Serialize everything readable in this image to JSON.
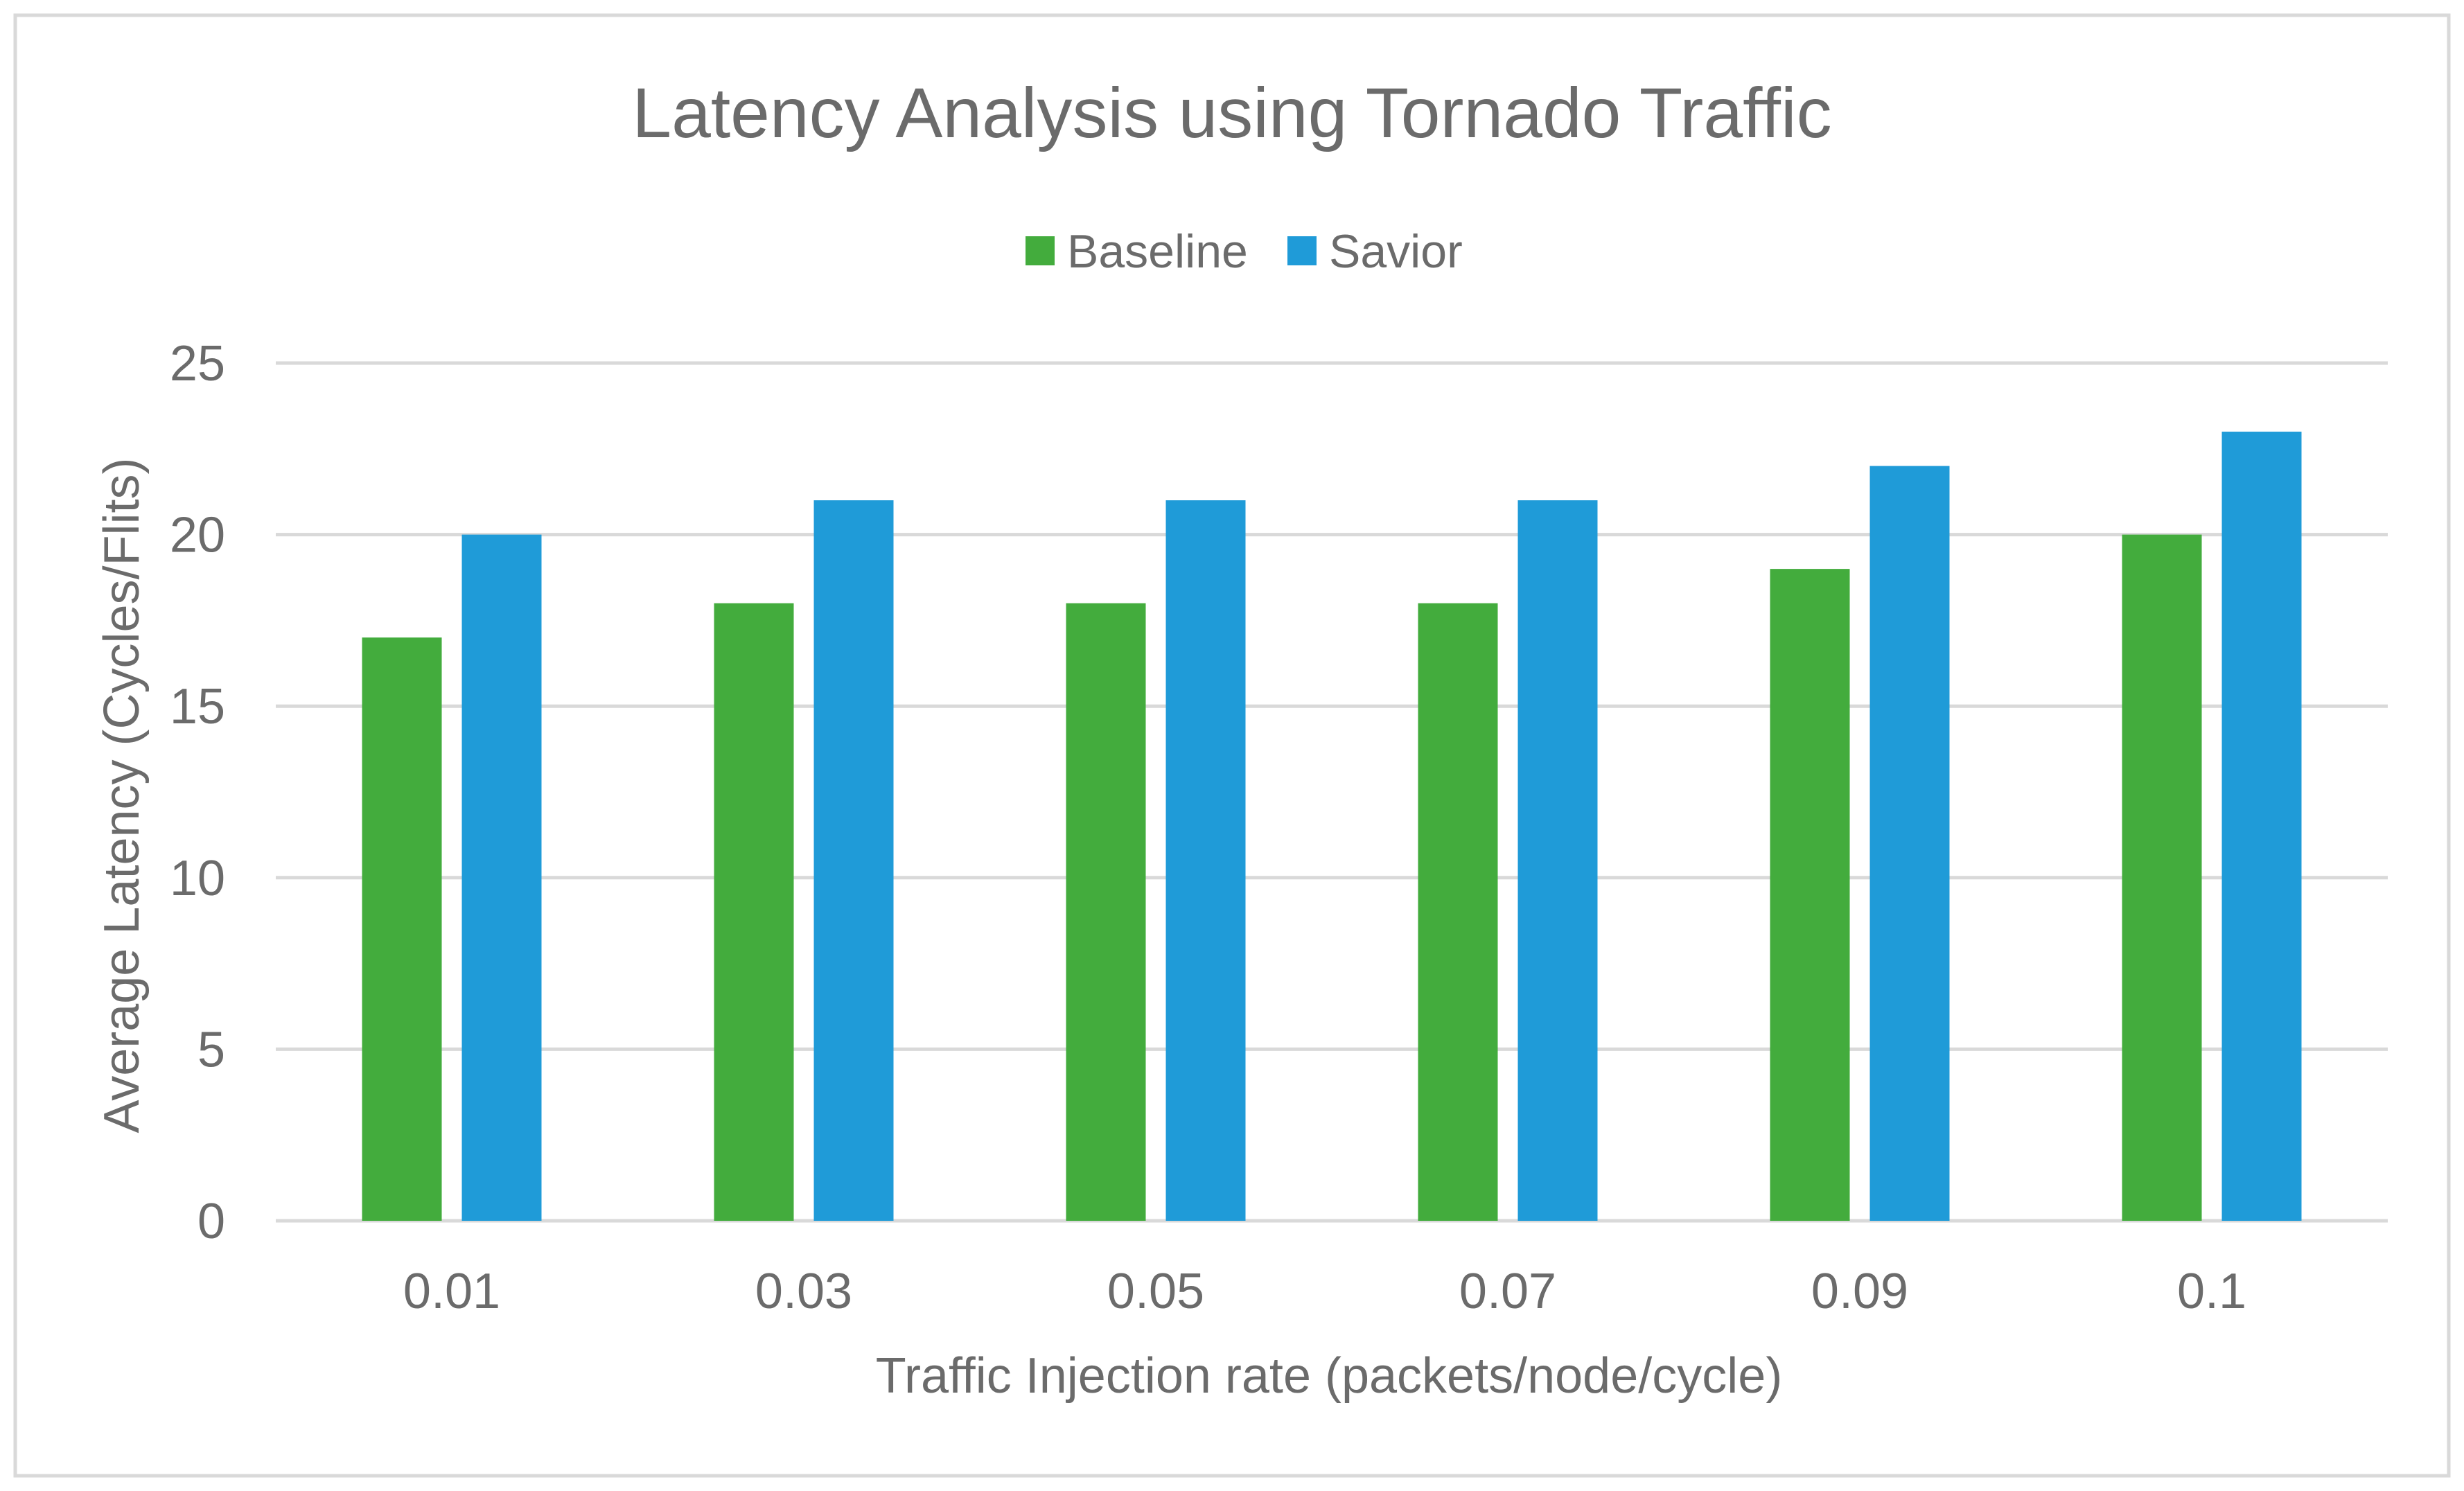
{
  "chart_data": {
    "type": "bar",
    "title": "Latency Analysis using Tornado Traffic",
    "xlabel": "Traffic Injection rate (packets/node/cycle)",
    "ylabel": "Average Latency (Cycles/Flits)",
    "categories": [
      "0.01",
      "0.03",
      "0.05",
      "0.07",
      "0.09",
      "0.1"
    ],
    "series": [
      {
        "name": "Baseline",
        "color": "#43ac3d",
        "values": [
          17,
          18,
          18,
          18,
          19,
          20
        ]
      },
      {
        "name": "Savior",
        "color": "#1f9bd8",
        "values": [
          20,
          21,
          21,
          21,
          22,
          23
        ]
      }
    ],
    "ylim": [
      0,
      25
    ],
    "yticks": [
      0,
      5,
      10,
      15,
      20,
      25
    ],
    "grid": true,
    "legend_position": "top-center"
  }
}
